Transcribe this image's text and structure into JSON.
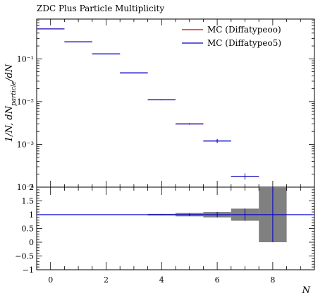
{
  "chart_data": {
    "type": "scatter",
    "title": "ZDC Plus Particle Multiplicity",
    "xlabel": "N",
    "ylabel": "1/N, dN_particle/dN",
    "xlim": [
      -0.5,
      9.5
    ],
    "xticks": [
      0,
      2,
      4,
      6,
      8
    ],
    "main": {
      "yscale": "log",
      "ylim": [
        0.0001,
        0.85
      ],
      "ytick_labels": [
        "10⁻⁴",
        "10⁻³",
        "10⁻²",
        "10⁻¹"
      ],
      "ytick_values": [
        0.0001,
        0.001,
        0.01,
        0.1
      ],
      "series": [
        {
          "name": "MC (Diffatypeoo)",
          "color": "#cc0000",
          "bins": [
            [
              -0.5,
              0.5
            ],
            [
              0.5,
              1.5
            ],
            [
              1.5,
              2.5
            ],
            [
              2.5,
              3.5
            ],
            [
              3.5,
              4.5
            ],
            [
              4.5,
              5.5
            ],
            [
              5.5,
              6.5
            ],
            [
              6.5,
              7.5
            ]
          ],
          "values": [
            0.5,
            0.25,
            0.13,
            0.047,
            0.011,
            0.003,
            0.0012,
            0.00018
          ],
          "errors": [
            0,
            0,
            0,
            0,
            0.0003,
            0.0001,
            0.00012,
            3e-05
          ]
        },
        {
          "name": "MC (Diffatypeo5)",
          "color": "#0000cc",
          "bins": [
            [
              -0.5,
              0.5
            ],
            [
              0.5,
              1.5
            ],
            [
              1.5,
              2.5
            ],
            [
              2.5,
              3.5
            ],
            [
              3.5,
              4.5
            ],
            [
              4.5,
              5.5
            ],
            [
              5.5,
              6.5
            ],
            [
              6.5,
              7.5
            ]
          ],
          "values": [
            0.5,
            0.25,
            0.13,
            0.047,
            0.011,
            0.003,
            0.0012,
            0.00018
          ],
          "errors": [
            0,
            0,
            0,
            0,
            0.0003,
            0.0001,
            0.00012,
            3e-05
          ]
        }
      ],
      "legend": "top-right"
    },
    "ratio": {
      "ylim": [
        -1,
        2
      ],
      "yticks": [
        -1,
        -0.5,
        0,
        0.5,
        1,
        1.5,
        2
      ],
      "ytick_labels": [
        "−1",
        "−0.5",
        "0",
        "0.5",
        "1",
        "1.5",
        "2"
      ],
      "band_color": "#808080",
      "band_bins": [
        [
          -0.5,
          0.5
        ],
        [
          0.5,
          1.5
        ],
        [
          1.5,
          2.5
        ],
        [
          2.5,
          3.5
        ],
        [
          3.5,
          4.5
        ],
        [
          4.5,
          5.5
        ],
        [
          5.5,
          6.5
        ],
        [
          6.5,
          7.5
        ],
        [
          7.5,
          8.5
        ]
      ],
      "band_halfwidth": [
        0.003,
        0.004,
        0.006,
        0.01,
        0.03,
        0.06,
        0.1,
        0.22,
        1.0
      ],
      "ratio_values": [
        1,
        1,
        1,
        1,
        1,
        1,
        1,
        1,
        1
      ],
      "ratio_errors": [
        0,
        0,
        0,
        0,
        0.02,
        0.05,
        0.1,
        0.22,
        1.0
      ]
    }
  }
}
